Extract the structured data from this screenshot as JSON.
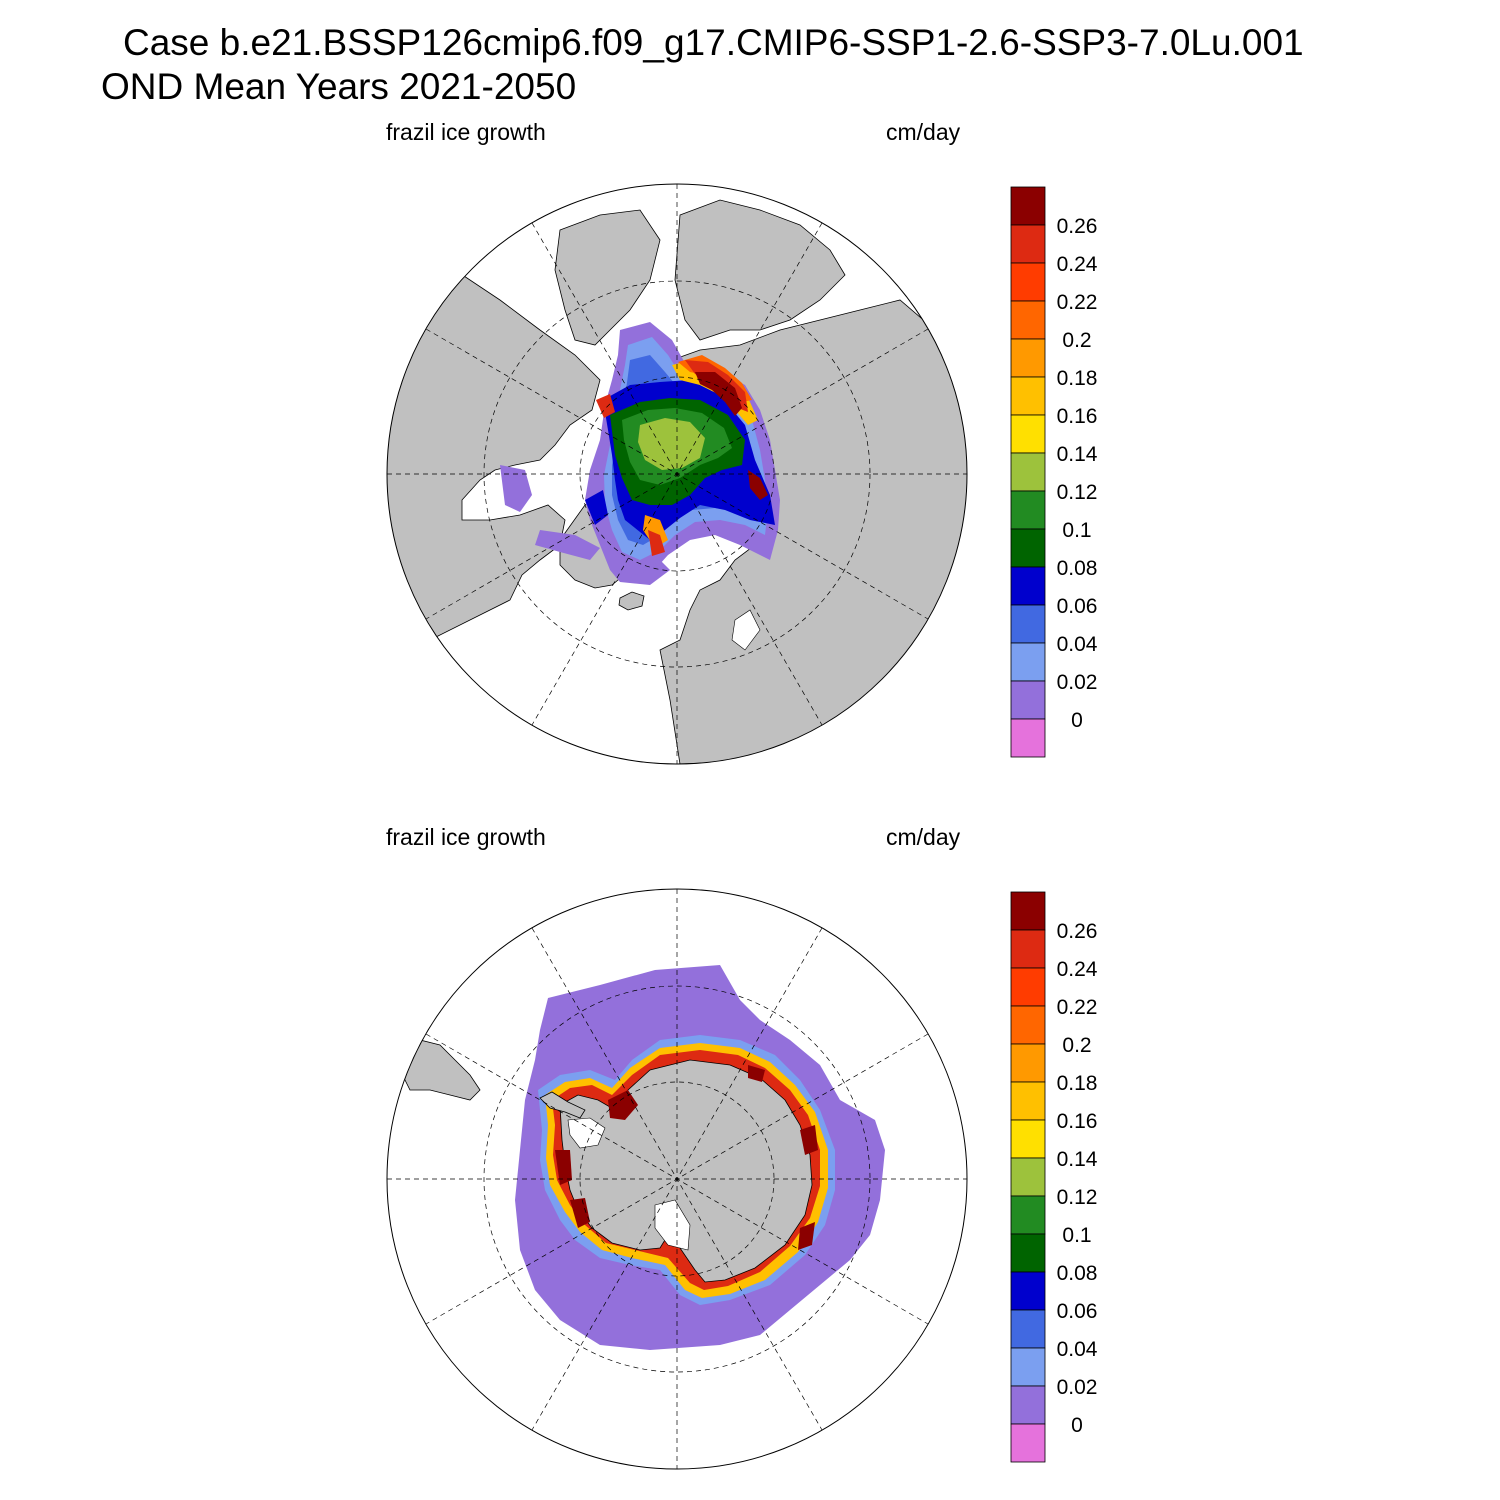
{
  "header": {
    "title_line1": "Case b.e21.BSSP126cmip6.f09_g17.CMIP6-SSP1-2.6-SSP3-7.0Lu.001",
    "title_line2": "OND Mean   Years 2021-2050"
  },
  "panels": [
    {
      "id": "north",
      "hemisphere": "Arctic",
      "variable_label": "frazil ice growth",
      "units_label": "cm/day",
      "land_color": "#c0c0c0"
    },
    {
      "id": "south",
      "hemisphere": "Antarctic",
      "variable_label": "frazil ice growth",
      "units_label": "cm/day",
      "land_color": "#c0c0c0"
    }
  ],
  "colorbar": {
    "labels": [
      "0.26",
      "0.24",
      "0.22",
      "0.2",
      "0.18",
      "0.16",
      "0.14",
      "0.12",
      "0.1",
      "0.08",
      "0.06",
      "0.04",
      "0.02",
      "0"
    ],
    "colors": [
      "#8b0000",
      "#dd2a12",
      "#ff3c00",
      "#ff6600",
      "#ff9900",
      "#ffc000",
      "#ffe000",
      "#9dc23c",
      "#228b22",
      "#006400",
      "#0000cd",
      "#4169e1",
      "#7b9ff0",
      "#9370db",
      "#e572dc"
    ]
  }
}
